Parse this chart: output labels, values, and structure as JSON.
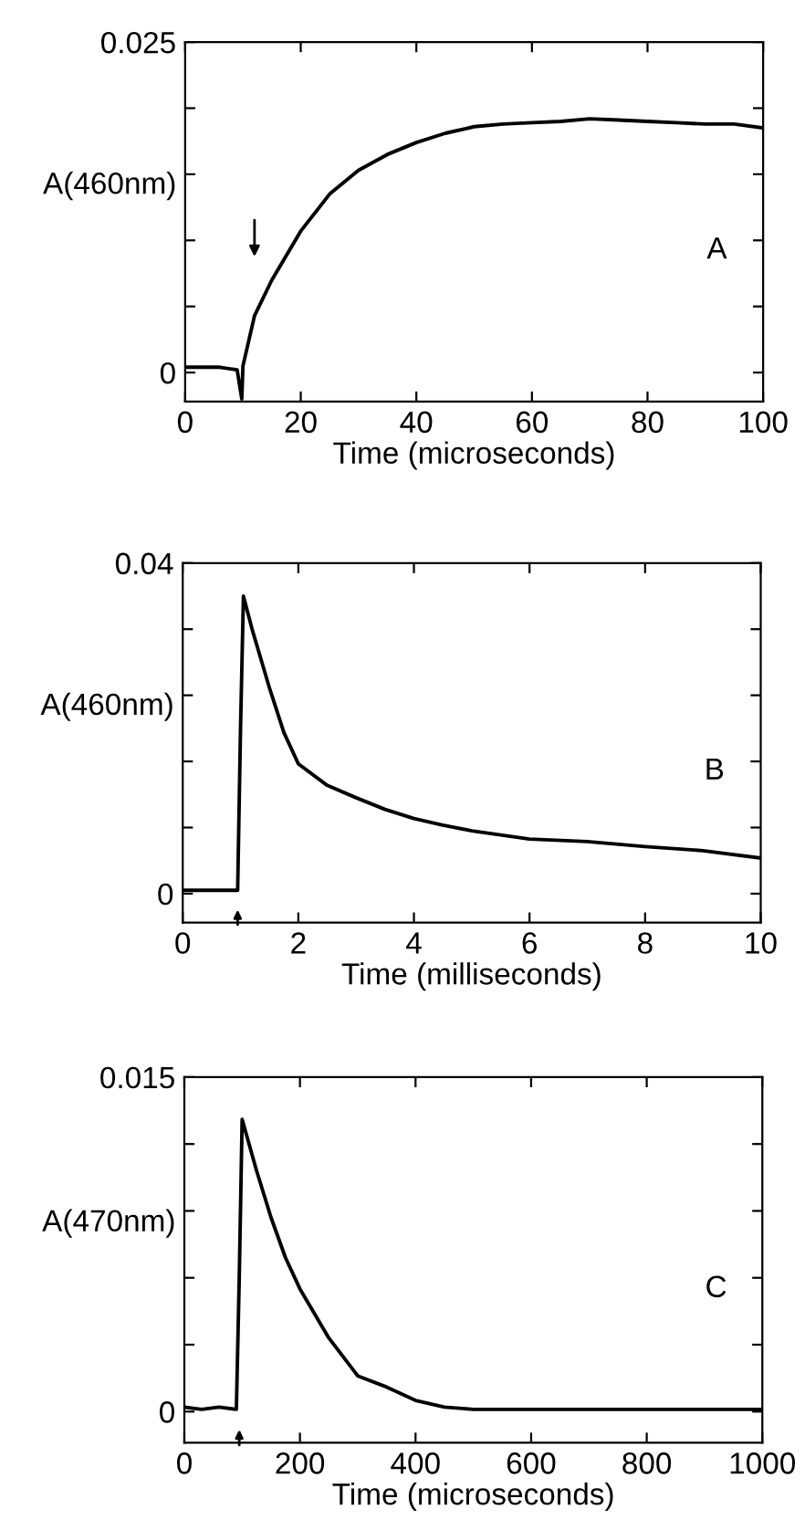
{
  "chart_data": [
    {
      "type": "line",
      "ylabel": "A(460nm)",
      "xlabel": "Time (microseconds)",
      "annotations": [
        "A"
      ],
      "xlim": [
        0,
        100
      ],
      "xticks": [
        0,
        20,
        40,
        60,
        80,
        100
      ],
      "ylim": [
        -0.0022,
        0.025
      ],
      "yticks": [
        0,
        {
          "value": 0.005,
          "label": null
        },
        {
          "value": 0.01,
          "label": null
        },
        {
          "value": 0.015,
          "label": null
        },
        {
          "value": 0.02,
          "label": null
        },
        0.025
      ],
      "grid": false,
      "marker": "none",
      "line_style": "solid",
      "series": [
        {
          "color": "#000000",
          "x": [
            0,
            3,
            6,
            9,
            9.8,
            10,
            12,
            15,
            20,
            25,
            30,
            35,
            40,
            45,
            50,
            55,
            60,
            65,
            70,
            75,
            80,
            85,
            90,
            95,
            100
          ],
          "values": [
            0.0004,
            0.0004,
            0.0004,
            0.0002,
            -0.002,
            0.0005,
            0.0043,
            0.007,
            0.0107,
            0.0135,
            0.0153,
            0.0165,
            0.0174,
            0.0181,
            0.0186,
            0.0188,
            0.0189,
            0.019,
            0.0192,
            0.0191,
            0.019,
            0.0189,
            0.0188,
            0.0188,
            0.0185
          ]
        }
      ]
    },
    {
      "type": "line",
      "ylabel": "A(460nm)",
      "xlabel": "Time (milliseconds)",
      "annotations": [
        "B"
      ],
      "xlim": [
        0,
        10
      ],
      "xticks": [
        0,
        2,
        4,
        6,
        8,
        10
      ],
      "ylim": [
        -0.0035,
        0.04
      ],
      "yticks": [
        0,
        {
          "value": 0.008,
          "label": null
        },
        {
          "value": 0.016,
          "label": null
        },
        {
          "value": 0.024,
          "label": null
        },
        {
          "value": 0.032,
          "label": null
        },
        0.04
      ],
      "grid": false,
      "marker": "none",
      "line_style": "solid",
      "series": [
        {
          "color": "#000000",
          "x": [
            0,
            0.5,
            0.95,
            1.0,
            1.05,
            1.2,
            1.5,
            1.75,
            2,
            2.5,
            3,
            3.5,
            4,
            4.5,
            5,
            6,
            7,
            8,
            9,
            10
          ],
          "values": [
            0.0004,
            0.0004,
            0.0004,
            0.02,
            0.036,
            0.032,
            0.0249,
            0.0195,
            0.0157,
            0.0131,
            0.0116,
            0.0102,
            0.0091,
            0.0083,
            0.0076,
            0.0066,
            0.0063,
            0.0057,
            0.0052,
            0.0043
          ]
        }
      ]
    },
    {
      "type": "line",
      "ylabel": "A(470nm)",
      "xlabel": "Time (microseconds)",
      "annotations": [
        "C"
      ],
      "xlim": [
        0,
        1000
      ],
      "xticks": [
        0,
        200,
        400,
        600,
        800,
        1000
      ],
      "ylim": [
        -0.0014,
        0.015
      ],
      "yticks": [
        0,
        {
          "value": 0.003,
          "label": null
        },
        {
          "value": 0.006,
          "label": null
        },
        {
          "value": 0.009,
          "label": null
        },
        {
          "value": 0.012,
          "label": null
        },
        0.015
      ],
      "grid": false,
      "marker": "none",
      "line_style": "solid",
      "series": [
        {
          "color": "#000000",
          "x": [
            0,
            30,
            60,
            90,
            95,
            100,
            125,
            150,
            175,
            200,
            250,
            300,
            350,
            400,
            450,
            500,
            600,
            700,
            800,
            900,
            1000
          ],
          "values": [
            0.0002,
            0.0001,
            0.0002,
            0.0001,
            0.006,
            0.0131,
            0.0108,
            0.0087,
            0.0069,
            0.0055,
            0.0033,
            0.0016,
            0.0011,
            0.0005,
            0.0002,
            0.0001,
            0.0001,
            0.0001,
            0.0001,
            0.0001,
            0.0001
          ]
        }
      ]
    }
  ]
}
